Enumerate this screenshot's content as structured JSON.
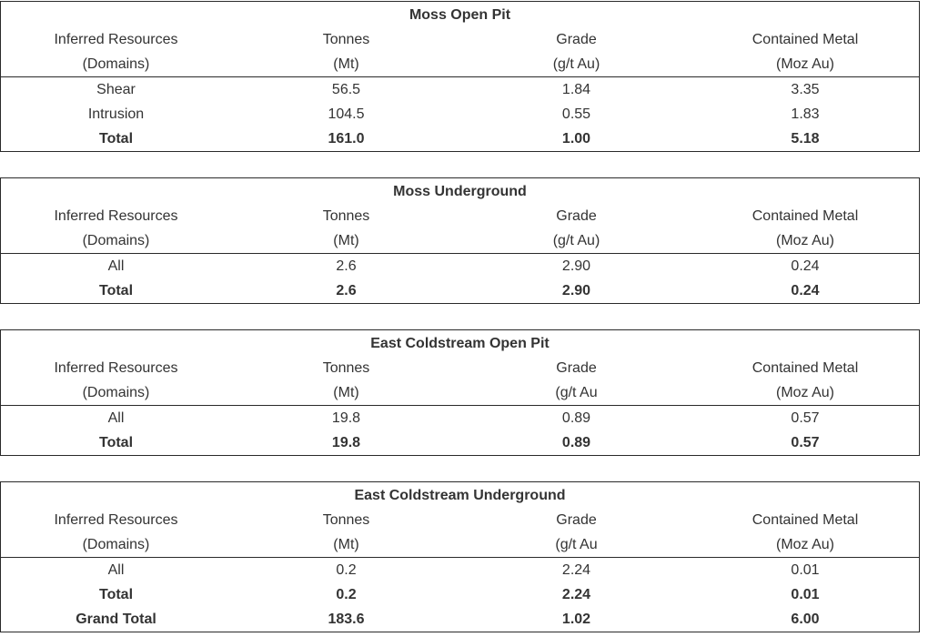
{
  "tables": [
    {
      "title": "Moss Open Pit",
      "header_top": [
        "Inferred Resources",
        "Tonnes",
        "Grade",
        "Contained Metal"
      ],
      "header_bottom": [
        "(Domains)",
        "(Mt)",
        "(g/t Au)",
        "(Moz Au)"
      ],
      "rows": [
        {
          "cells": [
            "Shear",
            "56.5",
            "1.84",
            "3.35"
          ],
          "bold": false
        },
        {
          "cells": [
            "Intrusion",
            "104.5",
            "0.55",
            "1.83"
          ],
          "bold": false
        },
        {
          "cells": [
            "Total",
            "161.0",
            "1.00",
            "5.18"
          ],
          "bold": true
        }
      ]
    },
    {
      "title": "Moss Underground",
      "header_top": [
        "Inferred Resources",
        "Tonnes",
        "Grade",
        "Contained Metal"
      ],
      "header_bottom": [
        "(Domains)",
        "(Mt)",
        "(g/t Au)",
        "(Moz Au)"
      ],
      "rows": [
        {
          "cells": [
            "All",
            "2.6",
            "2.90",
            "0.24"
          ],
          "bold": false
        },
        {
          "cells": [
            "Total",
            "2.6",
            "2.90",
            "0.24"
          ],
          "bold": true
        }
      ]
    },
    {
      "title": "East Coldstream Open Pit",
      "header_top": [
        "Inferred Resources",
        "Tonnes",
        "Grade",
        "Contained Metal"
      ],
      "header_bottom": [
        "(Domains)",
        "(Mt)",
        "(g/t Au",
        "(Moz Au)"
      ],
      "rows": [
        {
          "cells": [
            "All",
            "19.8",
            "0.89",
            "0.57"
          ],
          "bold": false
        },
        {
          "cells": [
            "Total",
            "19.8",
            "0.89",
            "0.57"
          ],
          "bold": true
        }
      ]
    },
    {
      "title": "East Coldstream Underground",
      "header_top": [
        "Inferred Resources",
        "Tonnes",
        "Grade",
        "Contained Metal"
      ],
      "header_bottom": [
        "(Domains)",
        "(Mt)",
        "(g/t Au",
        "(Moz Au)"
      ],
      "rows": [
        {
          "cells": [
            "All",
            "0.2",
            "2.24",
            "0.01"
          ],
          "bold": false
        },
        {
          "cells": [
            "Total",
            "0.2",
            "2.24",
            "0.01"
          ],
          "bold": true
        },
        {
          "cells": [
            "Grand Total",
            "183.6",
            "1.02",
            "6.00"
          ],
          "bold": true
        }
      ]
    }
  ]
}
